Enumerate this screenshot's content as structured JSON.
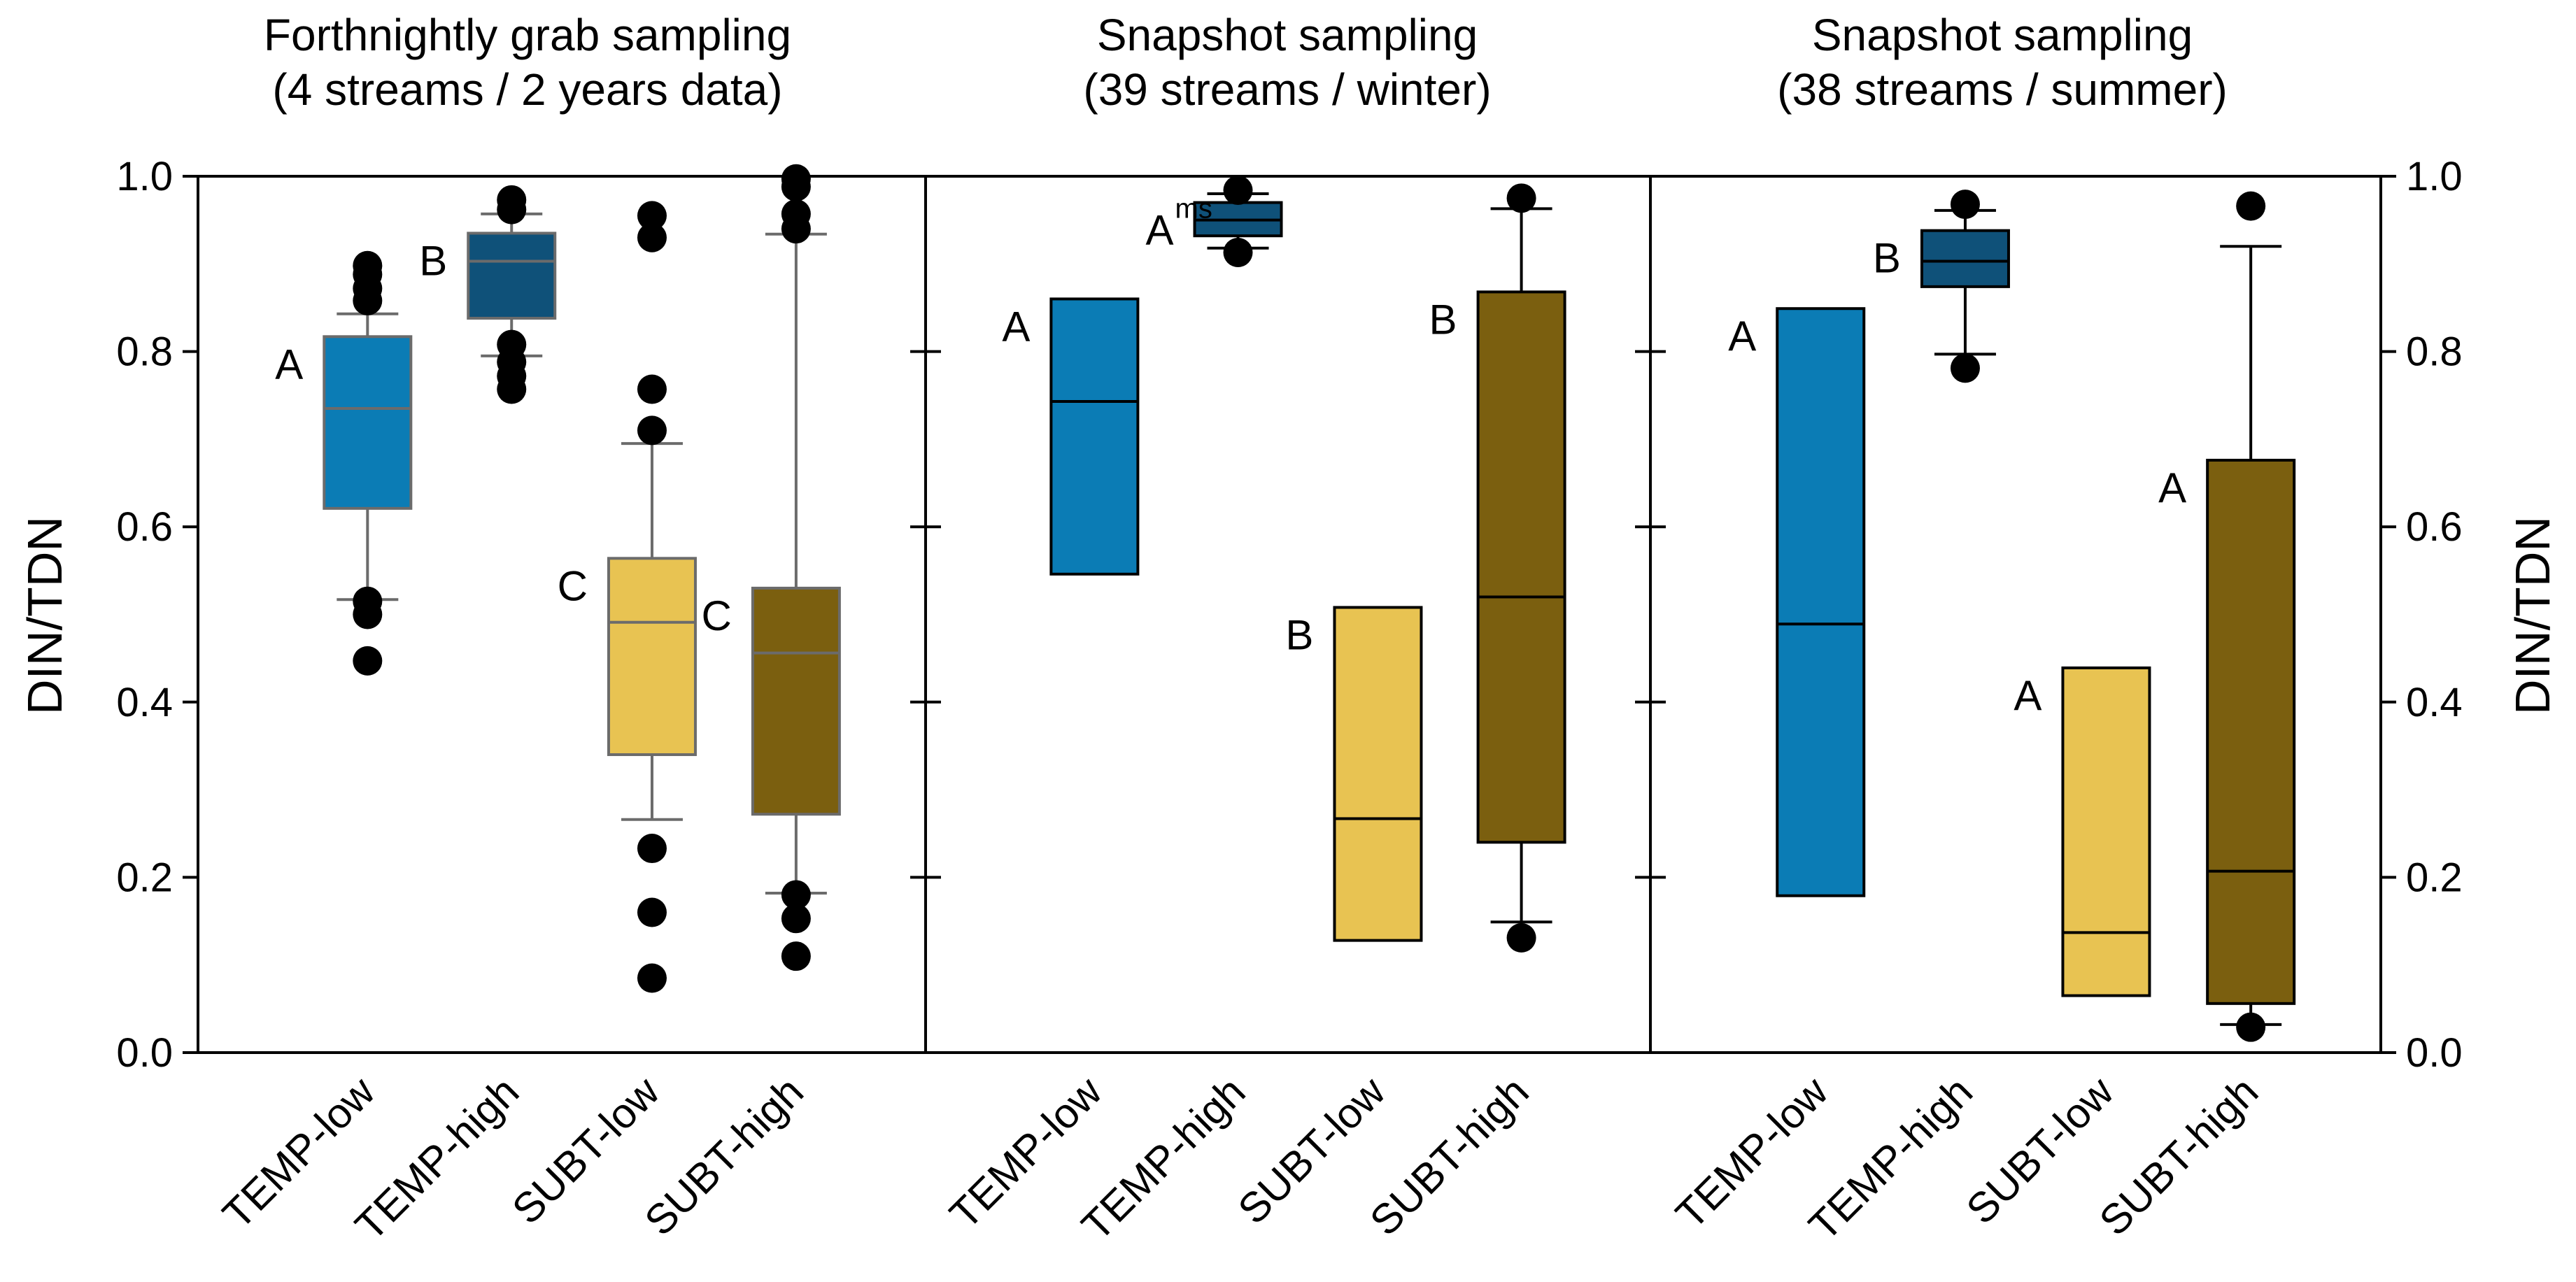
{
  "chart_data": {
    "type": "box",
    "ylabel_left": "DIN/TDN",
    "ylabel_right": "DIN/TDN",
    "ylim": [
      0,
      1.0
    ],
    "yticks": [
      0.0,
      0.2,
      0.4,
      0.6,
      0.8,
      1.0
    ],
    "ytick_labels": [
      "0.0",
      "0.2",
      "0.4",
      "0.6",
      "0.8",
      "1.0"
    ],
    "category_colors": {
      "TEMP-low": "#0b7cb5",
      "TEMP-high": "#0f5179",
      "SUBT-low": "#e8c352",
      "SUBT-high": "#7b5f0f"
    },
    "panels": [
      {
        "title_line1": "Forthnightly grab sampling",
        "title_line2": "(4 streams / 2 years data)",
        "style": "gray",
        "categories": [
          "TEMP-low",
          "TEMP-high",
          "SUBT-low",
          "SUBT-high"
        ],
        "boxes": [
          {
            "category": "TEMP-low",
            "q1": 0.621,
            "median": 0.735,
            "q3": 0.817,
            "whisker_low": 0.517,
            "whisker_high": 0.843,
            "outliers": [
              0.447,
              0.5,
              0.515,
              0.858,
              0.872,
              0.888,
              0.898
            ],
            "letter": "A",
            "letter_sup": ""
          },
          {
            "category": "TEMP-high",
            "q1": 0.838,
            "median": 0.903,
            "q3": 0.935,
            "whisker_low": 0.795,
            "whisker_high": 0.957,
            "outliers": [
              0.757,
              0.772,
              0.788,
              0.808,
              0.962,
              0.973
            ],
            "letter": "B",
            "letter_sup": ""
          },
          {
            "category": "SUBT-low",
            "q1": 0.34,
            "median": 0.491,
            "q3": 0.564,
            "whisker_low": 0.266,
            "whisker_high": 0.695,
            "outliers": [
              0.085,
              0.16,
              0.233,
              0.71,
              0.757,
              0.93,
              0.955
            ],
            "letter": "C",
            "letter_sup": ""
          },
          {
            "category": "SUBT-high",
            "q1": 0.272,
            "median": 0.456,
            "q3": 0.53,
            "whisker_low": 0.182,
            "whisker_high": 0.934,
            "outliers": [
              0.11,
              0.153,
              0.18,
              0.94,
              0.957,
              0.988,
              0.997
            ],
            "letter": "C",
            "letter_sup": ""
          }
        ]
      },
      {
        "title_line1": "Snapshot sampling",
        "title_line2": "(39 streams / winter)",
        "style": "black",
        "categories": [
          "TEMP-low",
          "TEMP-high",
          "SUBT-low",
          "SUBT-high"
        ],
        "boxes": [
          {
            "category": "TEMP-low",
            "q1": 0.546,
            "median": 0.743,
            "q3": 0.86,
            "whisker_low": null,
            "whisker_high": null,
            "outliers": [],
            "letter": "A",
            "letter_sup": ""
          },
          {
            "category": "TEMP-high",
            "q1": 0.932,
            "median": 0.95,
            "q3": 0.97,
            "whisker_low": 0.918,
            "whisker_high": 0.98,
            "outliers": [
              0.913,
              0.984
            ],
            "letter": "A",
            "letter_sup": "ms"
          },
          {
            "category": "SUBT-low",
            "q1": 0.128,
            "median": 0.267,
            "q3": 0.508,
            "whisker_low": null,
            "whisker_high": null,
            "outliers": [],
            "letter": "B",
            "letter_sup": ""
          },
          {
            "category": "SUBT-high",
            "q1": 0.24,
            "median": 0.52,
            "q3": 0.868,
            "whisker_low": 0.149,
            "whisker_high": 0.963,
            "outliers": [
              0.131,
              0.975
            ],
            "letter": "B",
            "letter_sup": ""
          }
        ]
      },
      {
        "title_line1": "Snapshot sampling",
        "title_line2": "(38 streams / summer)",
        "style": "black",
        "categories": [
          "TEMP-low",
          "TEMP-high",
          "SUBT-low",
          "SUBT-high"
        ],
        "boxes": [
          {
            "category": "TEMP-low",
            "q1": 0.179,
            "median": 0.489,
            "q3": 0.849,
            "whisker_low": null,
            "whisker_high": null,
            "outliers": [],
            "letter": "A",
            "letter_sup": ""
          },
          {
            "category": "TEMP-high",
            "q1": 0.874,
            "median": 0.903,
            "q3": 0.938,
            "whisker_low": 0.797,
            "whisker_high": 0.961,
            "outliers": [
              0.781,
              0.968
            ],
            "letter": "B",
            "letter_sup": ""
          },
          {
            "category": "SUBT-low",
            "q1": 0.065,
            "median": 0.137,
            "q3": 0.439,
            "whisker_low": null,
            "whisker_high": null,
            "outliers": [],
            "letter": "A",
            "letter_sup": ""
          },
          {
            "category": "SUBT-high",
            "q1": 0.056,
            "median": 0.207,
            "q3": 0.676,
            "whisker_low": 0.032,
            "whisker_high": 0.92,
            "outliers": [
              0.029,
              0.966
            ],
            "letter": "A",
            "letter_sup": ""
          }
        ]
      }
    ]
  }
}
